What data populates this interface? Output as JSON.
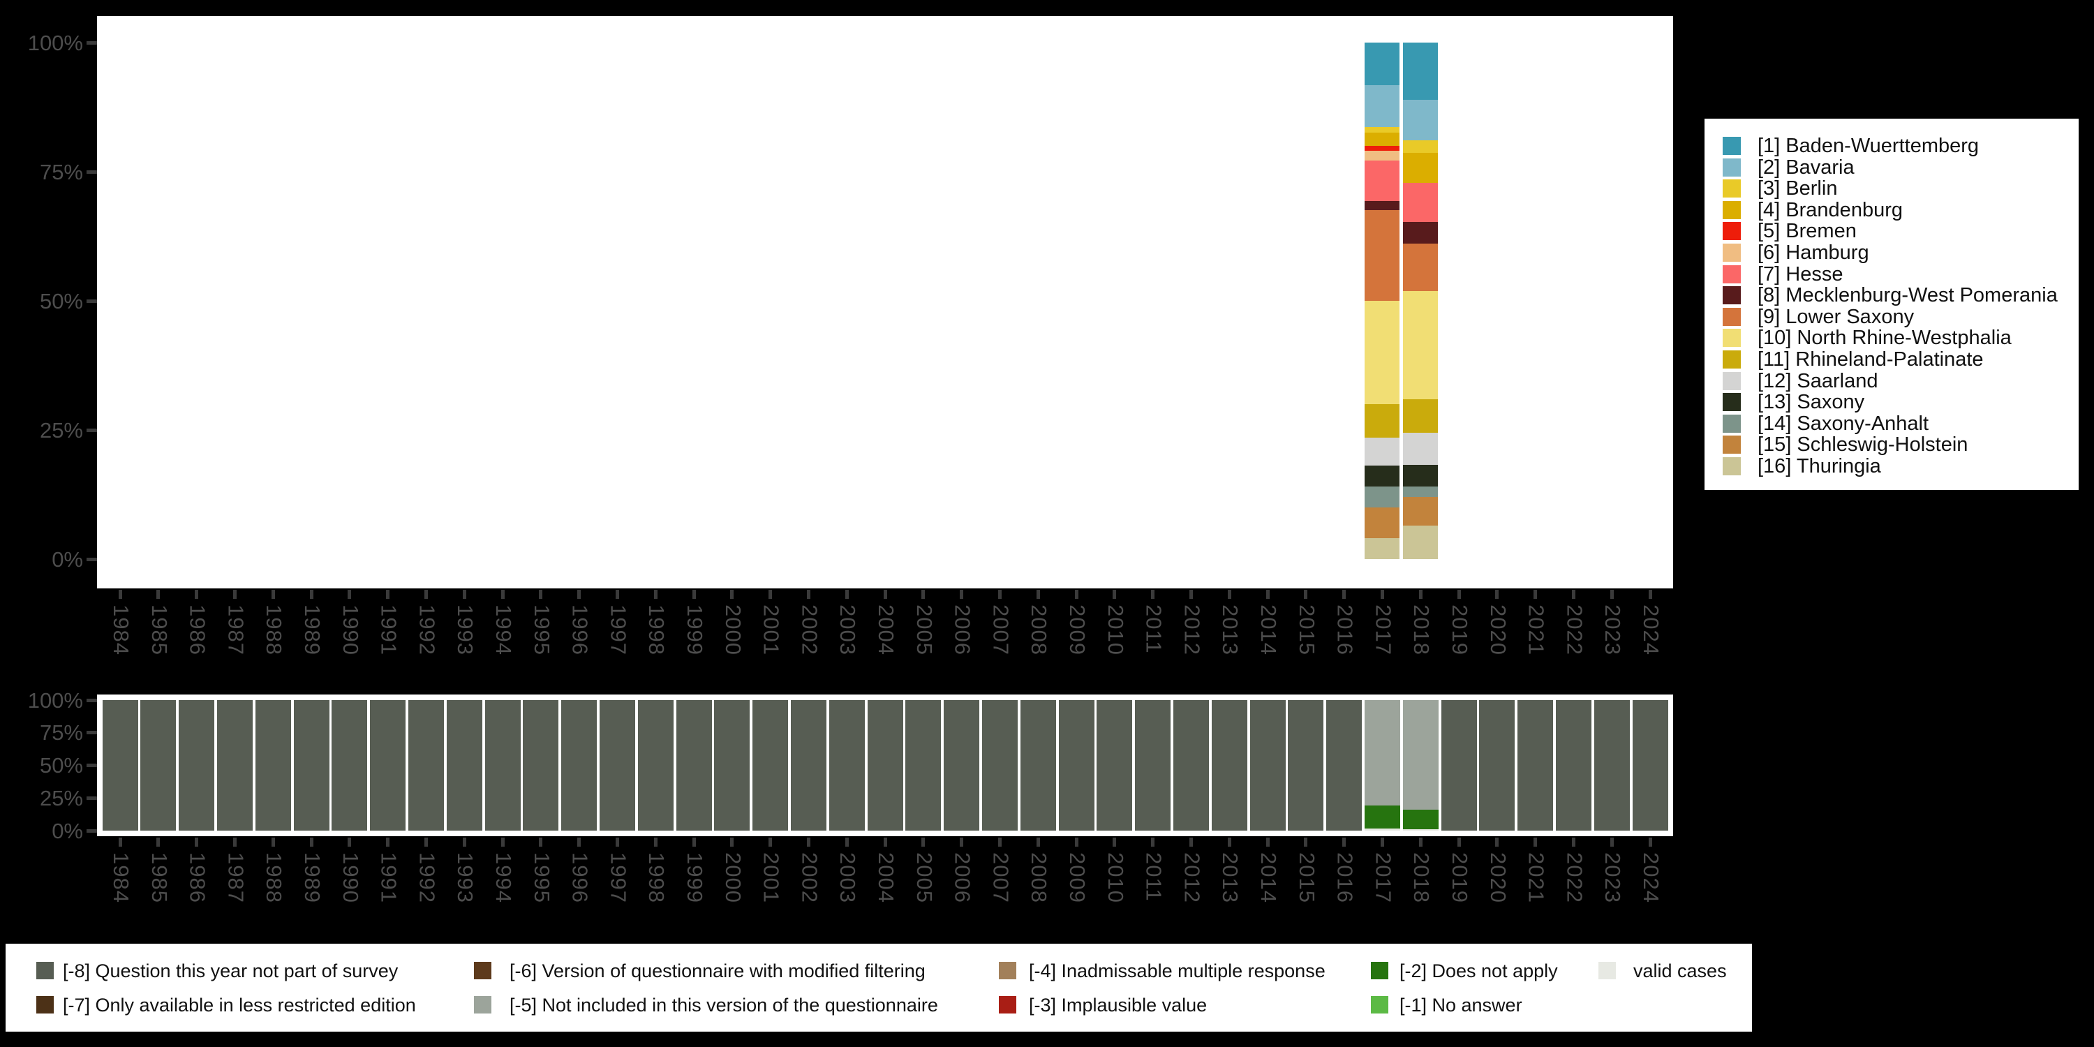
{
  "background_color": "#000000",
  "axis": {
    "label_color": "#4D4D4D",
    "tick_color": "#3A3A3A",
    "y_tick_labels": [
      "100%",
      "75%",
      "50%",
      "25%",
      "0%"
    ],
    "y_tick_values": [
      100,
      75,
      50,
      25,
      0
    ],
    "years": [
      1984,
      1985,
      1986,
      1987,
      1988,
      1989,
      1990,
      1991,
      1992,
      1993,
      1994,
      1995,
      1996,
      1997,
      1998,
      1999,
      2000,
      2001,
      2002,
      2003,
      2004,
      2005,
      2006,
      2007,
      2008,
      2009,
      2010,
      2011,
      2012,
      2013,
      2014,
      2015,
      2016,
      2017,
      2018,
      2019,
      2020,
      2021,
      2022,
      2023,
      2024
    ]
  },
  "legend_states": {
    "position": "right",
    "items": [
      {
        "id": "1",
        "label": "[1] Baden-Wuerttemberg",
        "color": "#3899B1"
      },
      {
        "id": "2",
        "label": "[2] Bavaria",
        "color": "#7FB8CA"
      },
      {
        "id": "3",
        "label": "[3] Berlin",
        "color": "#E9CA28"
      },
      {
        "id": "4",
        "label": "[4] Brandenburg",
        "color": "#DBAE00"
      },
      {
        "id": "5",
        "label": "[5] Bremen",
        "color": "#EE1D0A"
      },
      {
        "id": "6",
        "label": "[6] Hamburg",
        "color": "#F0BD82"
      },
      {
        "id": "7",
        "label": "[7] Hesse",
        "color": "#FB6767"
      },
      {
        "id": "8",
        "label": "[8] Mecklenburg-West Pomerania",
        "color": "#581B1C"
      },
      {
        "id": "9",
        "label": "[9] Lower Saxony",
        "color": "#D4743B"
      },
      {
        "id": "10",
        "label": "[10] North Rhine-Westphalia",
        "color": "#F1DE74"
      },
      {
        "id": "11",
        "label": "[11] Rhineland-Palatinate",
        "color": "#CAAB0C"
      },
      {
        "id": "12",
        "label": "[12] Saarland",
        "color": "#D4D4D3"
      },
      {
        "id": "13",
        "label": "[13] Saxony",
        "color": "#262D1B"
      },
      {
        "id": "14",
        "label": "[14] Saxony-Anhalt",
        "color": "#7D948A"
      },
      {
        "id": "15",
        "label": "[15] Schleswig-Holstein",
        "color": "#C2833C"
      },
      {
        "id": "16",
        "label": "[16] Thuringia",
        "color": "#CBC596"
      }
    ]
  },
  "legend_missing": {
    "position": "bottom",
    "items": [
      {
        "code": "-8",
        "label": "[-8] Question this year not part of survey",
        "color": "#575D53",
        "col": 0,
        "row": 0
      },
      {
        "code": "-7",
        "label": "[-7] Only available in less restricted edition",
        "color": "#4C3117",
        "col": 0,
        "row": 1
      },
      {
        "code": "-6",
        "label": "[-6] Version of questionnaire with modified filtering",
        "color": "#5D3A1C",
        "col": 1,
        "row": 0
      },
      {
        "code": "-5",
        "label": "[-5] Not included in this version of the questionnaire",
        "color": "#9CA49B",
        "col": 1,
        "row": 1
      },
      {
        "code": "-4",
        "label": "[-4] Inadmissable multiple response",
        "color": "#A2805A",
        "col": 2,
        "row": 0
      },
      {
        "code": "-3",
        "label": "[-3] Implausible value",
        "color": "#A91E15",
        "col": 2,
        "row": 1
      },
      {
        "code": "-2",
        "label": "[-2] Does not apply",
        "color": "#26740F",
        "col": 3,
        "row": 0
      },
      {
        "code": "-1",
        "label": "[-1] No answer",
        "color": "#5CBA45",
        "col": 3,
        "row": 1
      },
      {
        "code": "valid",
        "label": "valid cases",
        "color": "#E7E9E3",
        "col": 4,
        "row": 0
      }
    ]
  },
  "chart_data": [
    {
      "type": "bar",
      "stacked": true,
      "title": "",
      "xlabel": "",
      "ylabel": "",
      "ylim": [
        0,
        100
      ],
      "grid": false,
      "legend_position": "right",
      "note": "Federal state distribution in percent; only survey years 2017 and 2018 contain data, all other years empty. Segments listed top-to-bottom.",
      "bars": [
        {
          "x": 2017,
          "segments": [
            [
              "1",
              8.3
            ],
            [
              "2",
              8.0
            ],
            [
              "3",
              1.1
            ],
            [
              "4",
              2.6
            ],
            [
              "5",
              0.9
            ],
            [
              "6",
              1.9
            ],
            [
              "7",
              7.9
            ],
            [
              "8",
              1.7
            ],
            [
              "9",
              17.6
            ],
            [
              "10",
              20.0
            ],
            [
              "11",
              6.5
            ],
            [
              "12",
              5.4
            ],
            [
              "13",
              4.1
            ],
            [
              "14",
              4.0
            ],
            [
              "15",
              5.9
            ],
            [
              "16",
              4.1
            ]
          ]
        },
        {
          "x": 2018,
          "segments": [
            [
              "1",
              11.1
            ],
            [
              "2",
              7.8
            ],
            [
              "3",
              2.4
            ],
            [
              "4",
              5.9
            ],
            [
              "7",
              7.5
            ],
            [
              "8",
              4.2
            ],
            [
              "9",
              9.2
            ],
            [
              "10",
              20.9
            ],
            [
              "11",
              6.6
            ],
            [
              "12",
              6.1
            ],
            [
              "13",
              4.3
            ],
            [
              "14",
              2.0
            ],
            [
              "15",
              5.5
            ],
            [
              "16",
              6.5
            ]
          ]
        }
      ]
    },
    {
      "type": "bar",
      "stacked": true,
      "title": "",
      "xlabel": "",
      "ylabel": "",
      "ylim": [
        0,
        100
      ],
      "grid": false,
      "legend_position": "bottom",
      "note": "Missing-value composition per year in percent. Segments listed top-to-bottom.",
      "bars": [
        {
          "x": 1984,
          "segments": [
            [
              "-8",
              100
            ]
          ]
        },
        {
          "x": 1985,
          "segments": [
            [
              "-8",
              100
            ]
          ]
        },
        {
          "x": 1986,
          "segments": [
            [
              "-8",
              100
            ]
          ]
        },
        {
          "x": 1987,
          "segments": [
            [
              "-8",
              100
            ]
          ]
        },
        {
          "x": 1988,
          "segments": [
            [
              "-8",
              100
            ]
          ]
        },
        {
          "x": 1989,
          "segments": [
            [
              "-8",
              100
            ]
          ]
        },
        {
          "x": 1990,
          "segments": [
            [
              "-8",
              100
            ]
          ]
        },
        {
          "x": 1991,
          "segments": [
            [
              "-8",
              100
            ]
          ]
        },
        {
          "x": 1992,
          "segments": [
            [
              "-8",
              100
            ]
          ]
        },
        {
          "x": 1993,
          "segments": [
            [
              "-8",
              100
            ]
          ]
        },
        {
          "x": 1994,
          "segments": [
            [
              "-8",
              100
            ]
          ]
        },
        {
          "x": 1995,
          "segments": [
            [
              "-8",
              100
            ]
          ]
        },
        {
          "x": 1996,
          "segments": [
            [
              "-8",
              100
            ]
          ]
        },
        {
          "x": 1997,
          "segments": [
            [
              "-8",
              100
            ]
          ]
        },
        {
          "x": 1998,
          "segments": [
            [
              "-8",
              100
            ]
          ]
        },
        {
          "x": 1999,
          "segments": [
            [
              "-8",
              100
            ]
          ]
        },
        {
          "x": 2000,
          "segments": [
            [
              "-8",
              100
            ]
          ]
        },
        {
          "x": 2001,
          "segments": [
            [
              "-8",
              100
            ]
          ]
        },
        {
          "x": 2002,
          "segments": [
            [
              "-8",
              100
            ]
          ]
        },
        {
          "x": 2003,
          "segments": [
            [
              "-8",
              100
            ]
          ]
        },
        {
          "x": 2004,
          "segments": [
            [
              "-8",
              100
            ]
          ]
        },
        {
          "x": 2005,
          "segments": [
            [
              "-8",
              100
            ]
          ]
        },
        {
          "x": 2006,
          "segments": [
            [
              "-8",
              100
            ]
          ]
        },
        {
          "x": 2007,
          "segments": [
            [
              "-8",
              100
            ]
          ]
        },
        {
          "x": 2008,
          "segments": [
            [
              "-8",
              100
            ]
          ]
        },
        {
          "x": 2009,
          "segments": [
            [
              "-8",
              100
            ]
          ]
        },
        {
          "x": 2010,
          "segments": [
            [
              "-8",
              100
            ]
          ]
        },
        {
          "x": 2011,
          "segments": [
            [
              "-8",
              100
            ]
          ]
        },
        {
          "x": 2012,
          "segments": [
            [
              "-8",
              100
            ]
          ]
        },
        {
          "x": 2013,
          "segments": [
            [
              "-8",
              100
            ]
          ]
        },
        {
          "x": 2014,
          "segments": [
            [
              "-8",
              100
            ]
          ]
        },
        {
          "x": 2015,
          "segments": [
            [
              "-8",
              100
            ]
          ]
        },
        {
          "x": 2016,
          "segments": [
            [
              "-8",
              100
            ]
          ]
        },
        {
          "x": 2017,
          "segments": [
            [
              "-5",
              81.0
            ],
            [
              "-2",
              17.5
            ],
            [
              "valid",
              1.5
            ]
          ]
        },
        {
          "x": 2018,
          "segments": [
            [
              "-5",
              84.2
            ],
            [
              "-2",
              14.8
            ],
            [
              "valid",
              1.0
            ]
          ]
        },
        {
          "x": 2019,
          "segments": [
            [
              "-8",
              100
            ]
          ]
        },
        {
          "x": 2020,
          "segments": [
            [
              "-8",
              100
            ]
          ]
        },
        {
          "x": 2021,
          "segments": [
            [
              "-8",
              100
            ]
          ]
        },
        {
          "x": 2022,
          "segments": [
            [
              "-8",
              100
            ]
          ]
        },
        {
          "x": 2023,
          "segments": [
            [
              "-8",
              100
            ]
          ]
        },
        {
          "x": 2024,
          "segments": [
            [
              "-8",
              100
            ]
          ]
        }
      ]
    }
  ]
}
